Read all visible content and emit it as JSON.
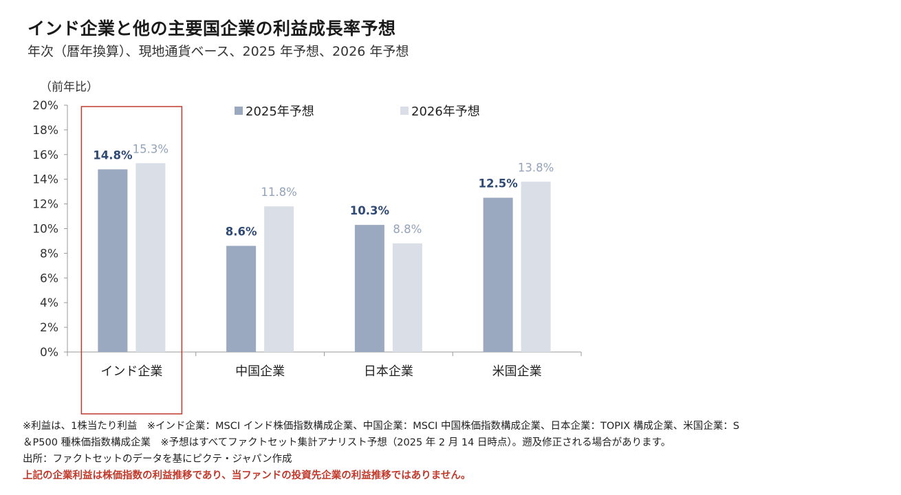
{
  "header": {
    "title": "インド企業と他の主要国企業の利益成長率予想",
    "subtitle": "年次（暦年換算）、現地通貨ベース、2025 年予想、2026 年予想"
  },
  "chart_data": {
    "type": "bar",
    "title": "インド企業と他の主要国企業の利益成長率予想",
    "ylabel": "（前年比）",
    "categories": [
      "インド企業",
      "中国企業",
      "日本企業",
      "米国企業"
    ],
    "series": [
      {
        "name": "2025年予想",
        "values": [
          14.8,
          8.6,
          10.3,
          12.5
        ],
        "labels": [
          "14.8%",
          "8.6%",
          "10.3%",
          "12.5%"
        ],
        "color": "#9aa9bf",
        "label_color": "#2f4a75"
      },
      {
        "name": "2026年予想",
        "values": [
          15.3,
          11.8,
          8.8,
          13.8
        ],
        "labels": [
          "15.3%",
          "11.8%",
          "8.8%",
          "13.8%"
        ],
        "color": "#d9dee7",
        "label_color": "#93a3ba"
      }
    ],
    "ylim": [
      0,
      20
    ],
    "yticks": [
      0,
      2,
      4,
      6,
      8,
      10,
      12,
      14,
      16,
      18,
      20
    ],
    "ytick_labels": [
      "0%",
      "2%",
      "4%",
      "6%",
      "8%",
      "10%",
      "12%",
      "14%",
      "16%",
      "18%",
      "20%"
    ],
    "legend_position": "top-center",
    "highlight_category": "インド企業",
    "highlight_color": "#c0392b",
    "grid": false
  },
  "notes": {
    "line1": "※利益は、1株当たり利益　※インド企業：MSCI インド株価指数構成企業、中国企業：MSCI 中国株価指数構成企業、日本企業：TOPIX 構成企業、米国企業：S",
    "line2": "＆P500 種株価指数構成企業　※予想はすべてファクトセット集計アナリスト予想（2025 年 2 月 14 日時点）。遡及修正される場合があります。",
    "line3": "出所：ファクトセットのデータを基にピクテ・ジャパン作成",
    "warning": "上記の企業利益は株価指数の利益推移であり、当ファンドの投資先企業の利益推移ではありません。"
  }
}
